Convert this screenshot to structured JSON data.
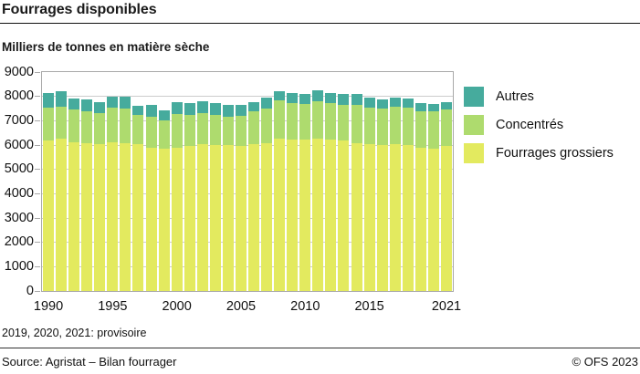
{
  "header": {
    "title": "Fourrages disponibles",
    "subtitle": "Milliers de tonnes en matière sèche"
  },
  "footnote": "2019, 2020, 2021: provisoire",
  "footer": {
    "source": "Source: Agristat – Bilan fourrager",
    "copyright": "© OFS 2023"
  },
  "colors": {
    "frame": "#a9a9a9",
    "gridline": "#cdcdcd",
    "text": "#111111",
    "title_rule": "#111111",
    "footer_rule": "#333333"
  },
  "chart_data": {
    "type": "bar",
    "stacked": true,
    "title": "Fourrages disponibles",
    "ylabel": "Milliers de tonnes en matière sèche",
    "ylim": [
      0,
      9000
    ],
    "yticks": [
      0,
      1000,
      2000,
      3000,
      4000,
      5000,
      6000,
      7000,
      8000,
      9000
    ],
    "grid": true,
    "legend_position": "right",
    "categories": [
      1990,
      1991,
      1992,
      1993,
      1994,
      1995,
      1996,
      1997,
      1998,
      1999,
      2000,
      2001,
      2002,
      2003,
      2004,
      2005,
      2006,
      2007,
      2008,
      2009,
      2010,
      2011,
      2012,
      2013,
      2014,
      2015,
      2016,
      2017,
      2018,
      2019,
      2020,
      2021
    ],
    "xticks": [
      {
        "label": "1990",
        "index": 0
      },
      {
        "label": "1995",
        "index": 5
      },
      {
        "label": "2000",
        "index": 10
      },
      {
        "label": "2005",
        "index": 15
      },
      {
        "label": "2010",
        "index": 20
      },
      {
        "label": "2015",
        "index": 25
      },
      {
        "label": "2021",
        "index": 31
      }
    ],
    "series": [
      {
        "name": "Fourrages grossiers",
        "color": "#e3ea5f",
        "values": [
          6170,
          6260,
          6110,
          6085,
          6050,
          6110,
          6075,
          6050,
          5900,
          5865,
          5900,
          5950,
          6035,
          6010,
          5990,
          5950,
          6050,
          6085,
          6270,
          6235,
          6235,
          6260,
          6210,
          6175,
          6085,
          6050,
          6010,
          6050,
          6010,
          5885,
          5865,
          5975
        ]
      },
      {
        "name": "Concentrés",
        "color": "#aedb6e",
        "values": [
          1360,
          1330,
          1360,
          1320,
          1275,
          1420,
          1420,
          1200,
          1260,
          1135,
          1385,
          1300,
          1285,
          1210,
          1170,
          1245,
          1320,
          1410,
          1570,
          1480,
          1445,
          1545,
          1505,
          1480,
          1570,
          1480,
          1480,
          1520,
          1520,
          1520,
          1505,
          1495
        ]
      },
      {
        "name": "Autres",
        "color": "#46ab9d",
        "values": [
          610,
          620,
          455,
          455,
          420,
          470,
          505,
          380,
          495,
          435,
          490,
          465,
          480,
          495,
          495,
          460,
          410,
          445,
          370,
          435,
          435,
          430,
          435,
          430,
          455,
          405,
          370,
          370,
          370,
          335,
          325,
          310
        ]
      }
    ]
  }
}
